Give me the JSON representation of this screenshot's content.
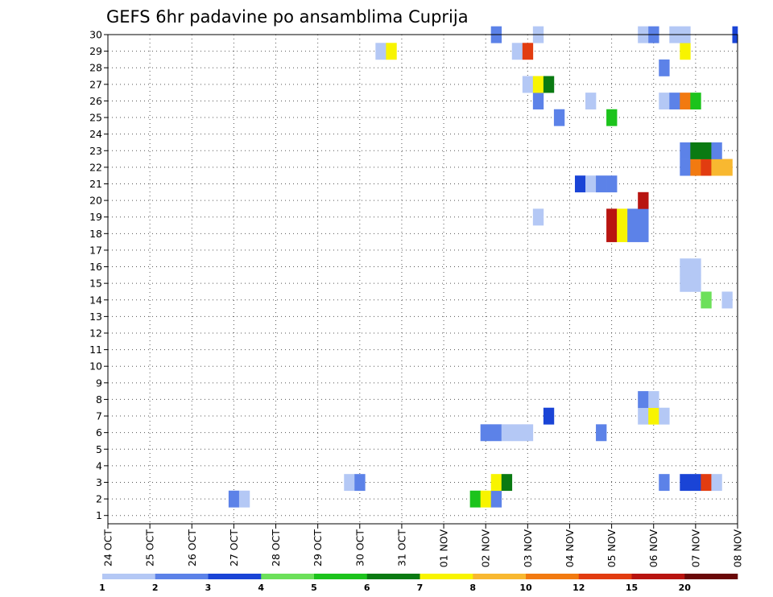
{
  "chart_data": {
    "type": "heatmap",
    "title": "GEFS 6hr padavine po ansamblima Cuprija",
    "xlabel": "",
    "ylabel": "",
    "x_ticks": [
      "24 OCT",
      "25 OCT",
      "26 OCT",
      "27 OCT",
      "28 OCT",
      "29 OCT",
      "30 OCT",
      "31 OCT",
      "01 NOV",
      "02 NOV",
      "03 NOV",
      "04 NOV",
      "05 NOV",
      "06 NOV",
      "07 NOV",
      "08 NOV"
    ],
    "x_unit": "6-hour step index from 24 OCT 00Z (4 steps per day)",
    "xlim": [
      0,
      60
    ],
    "ylim": [
      0.5,
      30
    ],
    "y_ticks": [
      1,
      2,
      3,
      4,
      5,
      6,
      7,
      8,
      9,
      10,
      11,
      12,
      13,
      14,
      15,
      16,
      17,
      18,
      19,
      20,
      21,
      22,
      23,
      24,
      25,
      26,
      27,
      28,
      29,
      30
    ],
    "grid": true,
    "legend": {
      "position": "bottom",
      "labels": [
        "1",
        "2",
        "3",
        "4",
        "5",
        "6",
        "7",
        "8",
        "10",
        "12",
        "15",
        "20"
      ],
      "colors": [
        "#b4c8f5",
        "#5c82e8",
        "#1a44d6",
        "#6ce05a",
        "#1cc31c",
        "#0a7a12",
        "#f8f400",
        "#f8b830",
        "#f27a10",
        "#e23c10",
        "#b81410",
        "#6a0808"
      ]
    },
    "cells": [
      {
        "member": 2,
        "step": 12,
        "value": 2
      },
      {
        "member": 2,
        "step": 13,
        "value": 1
      },
      {
        "member": 2,
        "step": 35,
        "value": 5
      },
      {
        "member": 2,
        "step": 36,
        "value": 7
      },
      {
        "member": 2,
        "step": 37,
        "value": 2
      },
      {
        "member": 3,
        "step": 23,
        "value": 1
      },
      {
        "member": 3,
        "step": 24,
        "value": 2
      },
      {
        "member": 3,
        "step": 37,
        "value": 7
      },
      {
        "member": 3,
        "step": 38,
        "value": 6
      },
      {
        "member": 3,
        "step": 53,
        "value": 2
      },
      {
        "member": 3,
        "step": 55,
        "value": 3
      },
      {
        "member": 3,
        "step": 56,
        "value": 3
      },
      {
        "member": 3,
        "step": 57,
        "value": 12
      },
      {
        "member": 3,
        "step": 58,
        "value": 1
      },
      {
        "member": 6,
        "step": 36,
        "value": 2
      },
      {
        "member": 6,
        "step": 37,
        "value": 2
      },
      {
        "member": 6,
        "step": 38,
        "value": 1
      },
      {
        "member": 6,
        "step": 39,
        "value": 1
      },
      {
        "member": 6,
        "step": 40,
        "value": 1
      },
      {
        "member": 6,
        "step": 47,
        "value": 2
      },
      {
        "member": 7,
        "step": 42,
        "value": 3
      },
      {
        "member": 7,
        "step": 51,
        "value": 1
      },
      {
        "member": 7,
        "step": 52,
        "value": 7
      },
      {
        "member": 7,
        "step": 53,
        "value": 1
      },
      {
        "member": 8,
        "step": 51,
        "value": 2
      },
      {
        "member": 8,
        "step": 52,
        "value": 1
      },
      {
        "member": 14,
        "step": 57,
        "value": 4
      },
      {
        "member": 14,
        "step": 59,
        "value": 1
      },
      {
        "member": 15,
        "step": 55,
        "value": 1
      },
      {
        "member": 15,
        "step": 56,
        "value": 1
      },
      {
        "member": 16,
        "step": 55,
        "value": 1
      },
      {
        "member": 16,
        "step": 56,
        "value": 1
      },
      {
        "member": 18,
        "step": 48,
        "value": 15
      },
      {
        "member": 18,
        "step": 49,
        "value": 7
      },
      {
        "member": 18,
        "step": 50,
        "value": 2
      },
      {
        "member": 18,
        "step": 51,
        "value": 2
      },
      {
        "member": 19,
        "step": 41,
        "value": 1
      },
      {
        "member": 19,
        "step": 48,
        "value": 15
      },
      {
        "member": 19,
        "step": 49,
        "value": 7
      },
      {
        "member": 19,
        "step": 50,
        "value": 2
      },
      {
        "member": 19,
        "step": 51,
        "value": 2
      },
      {
        "member": 20,
        "step": 51,
        "value": 15
      },
      {
        "member": 21,
        "step": 45,
        "value": 3
      },
      {
        "member": 21,
        "step": 46,
        "value": 1
      },
      {
        "member": 21,
        "step": 47,
        "value": 2
      },
      {
        "member": 21,
        "step": 48,
        "value": 2
      },
      {
        "member": 22,
        "step": 55,
        "value": 2
      },
      {
        "member": 22,
        "step": 56,
        "value": 10
      },
      {
        "member": 22,
        "step": 57,
        "value": 12
      },
      {
        "member": 22,
        "step": 58,
        "value": 8
      },
      {
        "member": 22,
        "step": 59,
        "value": 8
      },
      {
        "member": 23,
        "step": 55,
        "value": 2
      },
      {
        "member": 23,
        "step": 56,
        "value": 6
      },
      {
        "member": 23,
        "step": 57,
        "value": 6
      },
      {
        "member": 23,
        "step": 58,
        "value": 2
      },
      {
        "member": 25,
        "step": 43,
        "value": 2
      },
      {
        "member": 25,
        "step": 48,
        "value": 5
      },
      {
        "member": 26,
        "step": 41,
        "value": 2
      },
      {
        "member": 26,
        "step": 46,
        "value": 1
      },
      {
        "member": 26,
        "step": 53,
        "value": 1
      },
      {
        "member": 26,
        "step": 54,
        "value": 2
      },
      {
        "member": 26,
        "step": 55,
        "value": 10
      },
      {
        "member": 26,
        "step": 56,
        "value": 5
      },
      {
        "member": 27,
        "step": 40,
        "value": 1
      },
      {
        "member": 27,
        "step": 41,
        "value": 7
      },
      {
        "member": 27,
        "step": 42,
        "value": 6
      },
      {
        "member": 28,
        "step": 53,
        "value": 2
      },
      {
        "member": 29,
        "step": 26,
        "value": 1
      },
      {
        "member": 29,
        "step": 27,
        "value": 7
      },
      {
        "member": 29,
        "step": 39,
        "value": 1
      },
      {
        "member": 29,
        "step": 40,
        "value": 12
      },
      {
        "member": 29,
        "step": 55,
        "value": 7
      },
      {
        "member": 30,
        "step": 37,
        "value": 2
      },
      {
        "member": 30,
        "step": 41,
        "value": 1
      },
      {
        "member": 30,
        "step": 51,
        "value": 1
      },
      {
        "member": 30,
        "step": 52,
        "value": 2
      },
      {
        "member": 30,
        "step": 54,
        "value": 1
      },
      {
        "member": 30,
        "step": 55,
        "value": 1
      },
      {
        "member": 30,
        "step": 60,
        "value": 3
      }
    ]
  }
}
